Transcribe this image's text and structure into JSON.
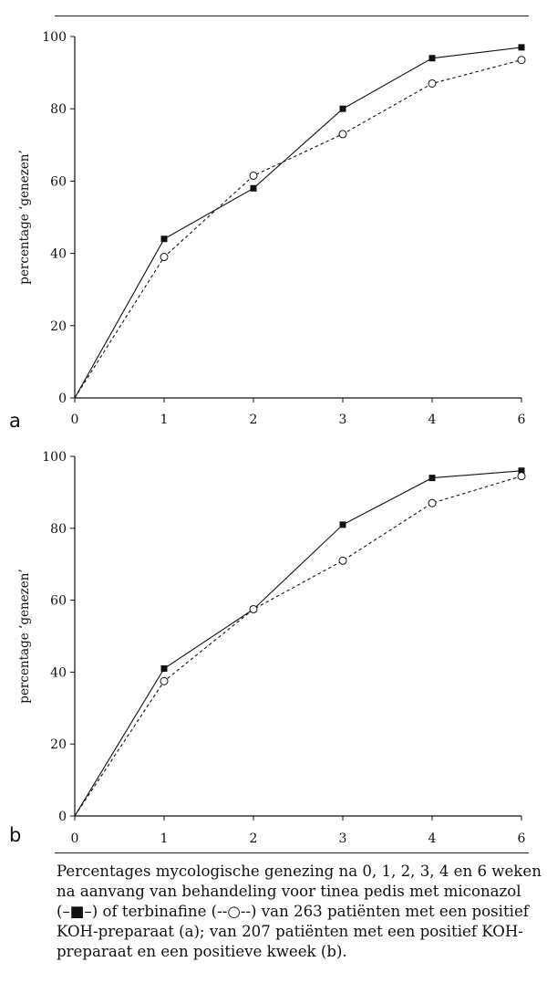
{
  "chart_data": [
    {
      "type": "line",
      "panel_label": "a",
      "ylabel": "percentage ‘genezen’",
      "xlabel": "",
      "x_ticks": [
        "0",
        "1",
        "2",
        "3",
        "4",
        "6"
      ],
      "y_ticks": [
        "0",
        "20",
        "40",
        "60",
        "80",
        "100"
      ],
      "ylim": [
        0,
        100
      ],
      "x": [
        0,
        1,
        2,
        3,
        4,
        6
      ],
      "series": [
        {
          "name": "miconazol",
          "style": "solid-filled-square",
          "values": [
            0,
            44,
            58,
            80,
            94,
            97
          ]
        },
        {
          "name": "terbinafine",
          "style": "dashed-open-circle",
          "values": [
            0,
            39,
            61.5,
            73,
            87,
            93.5
          ]
        }
      ]
    },
    {
      "type": "line",
      "panel_label": "b",
      "ylabel": "percentage ‘genezen’",
      "xlabel": "",
      "x_ticks": [
        "0",
        "1",
        "2",
        "3",
        "4",
        "6"
      ],
      "y_ticks": [
        "0",
        "20",
        "40",
        "60",
        "80",
        "100"
      ],
      "ylim": [
        0,
        100
      ],
      "x": [
        0,
        1,
        2,
        3,
        4,
        6
      ],
      "series": [
        {
          "name": "miconazol",
          "style": "solid-filled-square",
          "values": [
            0,
            41,
            57.5,
            81,
            94,
            96
          ]
        },
        {
          "name": "terbinafine",
          "style": "dashed-open-circle",
          "values": [
            0,
            37.5,
            57.5,
            71,
            87,
            94.5
          ]
        }
      ]
    }
  ],
  "caption": {
    "lines": [
      "Percentages mycologische genezing na 0, 1, 2, 3, 4 en 6 weken",
      "na aanvang van behandeling voor tinea pedis met miconazol",
      "(–■–) of terbinafine (--○--) van 263 patiënten met een positief",
      "KOH-preparaat (a); van 207 patiënten met een positief KOH-",
      "preparaat en een positieve kweek (b)."
    ]
  }
}
